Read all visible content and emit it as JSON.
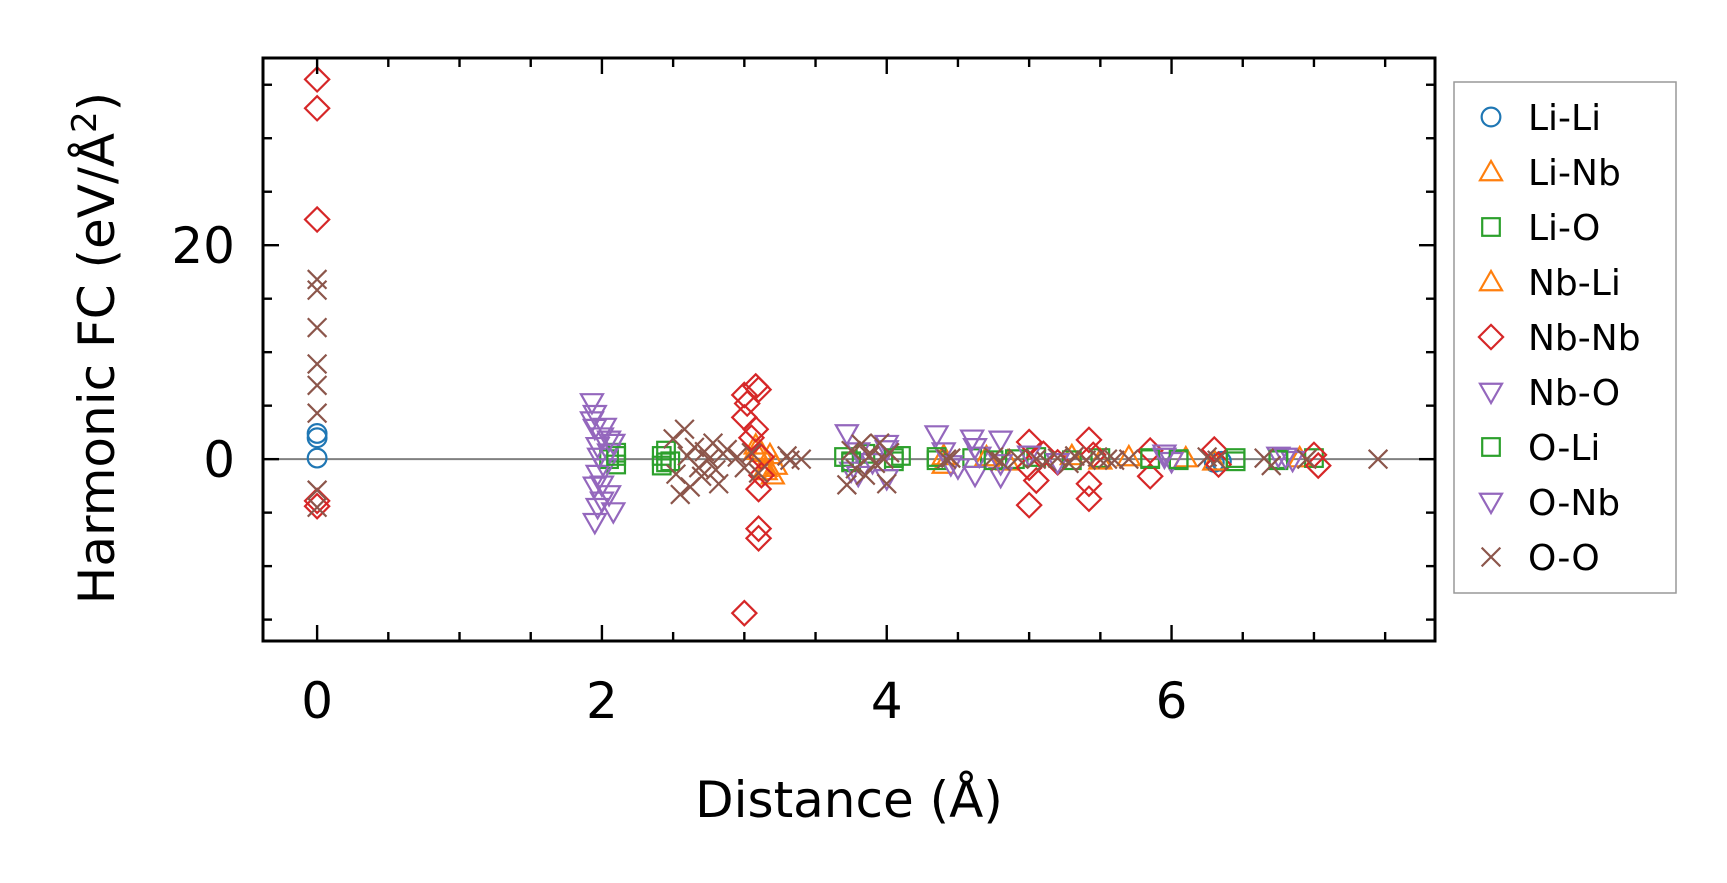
{
  "chart_data": {
    "type": "scatter",
    "title": "",
    "xlabel": "Distance (Å)",
    "ylabel_main": "Harmonic FC (eV/Å",
    "ylabel_sup": "2",
    "ylabel_close": ")",
    "xlim": [
      -0.38,
      7.85
    ],
    "ylim": [
      -17,
      37.5
    ],
    "xticks": [
      0,
      2,
      4,
      6
    ],
    "xtick_labels": [
      "0",
      "2",
      "4",
      "6"
    ],
    "yticks": [
      0,
      20
    ],
    "ytick_labels": [
      "0",
      "20"
    ],
    "grid": false,
    "zero_line": true,
    "legend_position": "outside-right",
    "series": [
      {
        "name": "Li-Li",
        "marker": "circle",
        "color": "#1f77b4",
        "points": [
          [
            0,
            2.4
          ],
          [
            0,
            2.0
          ],
          [
            0,
            0.1
          ],
          [
            6.3,
            -0.3
          ],
          [
            6.35,
            -0.2
          ]
        ]
      },
      {
        "name": "Li-Nb",
        "marker": "triangle-up",
        "color": "#ff7f0e",
        "points": [
          [
            3.08,
            1.3
          ],
          [
            3.15,
            -0.8
          ],
          [
            3.2,
            -1.5
          ],
          [
            3.12,
            0.6
          ],
          [
            4.4,
            -0.5
          ],
          [
            4.85,
            -0.2
          ],
          [
            5.3,
            0.3
          ],
          [
            5.7,
            0.2
          ],
          [
            6.3,
            -0.2
          ],
          [
            6.9,
            0.1
          ]
        ]
      },
      {
        "name": "Li-O",
        "marker": "square",
        "color": "#2ca02c",
        "points": [
          [
            2.05,
            0.0
          ],
          [
            2.1,
            -0.5
          ],
          [
            2.1,
            0.6
          ],
          [
            2.42,
            0.3
          ],
          [
            2.42,
            -0.6
          ],
          [
            2.45,
            0.8
          ],
          [
            2.48,
            -0.2
          ],
          [
            3.7,
            0.2
          ],
          [
            3.75,
            -0.3
          ],
          [
            3.85,
            0.5
          ],
          [
            4.05,
            -0.2
          ],
          [
            4.1,
            0.3
          ],
          [
            4.35,
            -0.1
          ],
          [
            4.6,
            0.1
          ],
          [
            4.9,
            0.0
          ],
          [
            5.05,
            0.2
          ],
          [
            5.3,
            -0.1
          ],
          [
            5.5,
            0.1
          ],
          [
            5.85,
            0.0
          ],
          [
            6.05,
            -0.1
          ],
          [
            6.45,
            -0.2
          ],
          [
            6.75,
            0.0
          ],
          [
            7.0,
            0.1
          ]
        ]
      },
      {
        "name": "Nb-Li",
        "marker": "triangle-up",
        "color": "#ff7f0e",
        "points": [
          [
            3.08,
            0.8
          ],
          [
            3.15,
            -1.1
          ],
          [
            3.18,
            0.4
          ],
          [
            3.22,
            -0.6
          ],
          [
            4.4,
            0.3
          ],
          [
            4.7,
            0.2
          ],
          [
            5.5,
            -0.1
          ],
          [
            6.1,
            0.1
          ]
        ]
      },
      {
        "name": "Nb-Nb",
        "marker": "diamond",
        "color": "#d62728",
        "points": [
          [
            0,
            35.5
          ],
          [
            0,
            32.8
          ],
          [
            0,
            22.4
          ],
          [
            0,
            -3.9
          ],
          [
            0,
            -4.4
          ],
          [
            3.0,
            6.0
          ],
          [
            3.0,
            3.9
          ],
          [
            3.0,
            -14.4
          ],
          [
            3.02,
            5.2
          ],
          [
            3.05,
            2.0
          ],
          [
            3.08,
            6.8
          ],
          [
            3.1,
            6.5
          ],
          [
            3.08,
            2.8
          ],
          [
            3.1,
            -2.8
          ],
          [
            3.1,
            -6.5
          ],
          [
            3.1,
            -7.4
          ],
          [
            3.12,
            -1.5
          ],
          [
            3.12,
            0.2
          ],
          [
            5.0,
            1.6
          ],
          [
            5.0,
            -0.8
          ],
          [
            5.0,
            -4.3
          ],
          [
            5.05,
            -2.0
          ],
          [
            5.1,
            0.5
          ],
          [
            5.2,
            -0.3
          ],
          [
            5.42,
            1.8
          ],
          [
            5.42,
            -3.7
          ],
          [
            5.42,
            -2.3
          ],
          [
            5.45,
            0.4
          ],
          [
            5.85,
            0.8
          ],
          [
            5.85,
            -1.6
          ],
          [
            6.3,
            0.9
          ],
          [
            6.33,
            -0.5
          ],
          [
            7.0,
            0.4
          ],
          [
            7.03,
            -0.6
          ]
        ]
      },
      {
        "name": "Nb-O",
        "marker": "triangle-down",
        "color": "#9467bd",
        "points": [
          [
            1.93,
            5.3
          ],
          [
            1.93,
            3.6
          ],
          [
            1.95,
            2.9
          ],
          [
            1.95,
            -2.5
          ],
          [
            1.95,
            -5.9
          ],
          [
            1.97,
            -1.4
          ],
          [
            1.97,
            1.2
          ],
          [
            1.98,
            0.2
          ],
          [
            2.0,
            2.1
          ],
          [
            2.0,
            -3.9
          ],
          [
            2.02,
            3.0
          ],
          [
            2.02,
            -0.8
          ],
          [
            2.05,
            -3.3
          ],
          [
            2.05,
            0.6
          ],
          [
            2.08,
            -4.9
          ],
          [
            2.08,
            1.5
          ],
          [
            3.72,
            2.4
          ],
          [
            3.75,
            -1.1
          ],
          [
            3.8,
            0.7
          ],
          [
            3.9,
            -0.3
          ],
          [
            4.0,
            1.4
          ],
          [
            4.0,
            -1.8
          ],
          [
            4.35,
            2.3
          ],
          [
            4.4,
            0.7
          ],
          [
            4.5,
            -0.8
          ],
          [
            4.6,
            1.9
          ],
          [
            4.62,
            -1.5
          ],
          [
            4.65,
            0.3
          ],
          [
            4.8,
            1.8
          ],
          [
            4.8,
            -1.6
          ],
          [
            5.0,
            0.4
          ],
          [
            5.2,
            -0.3
          ],
          [
            5.95,
            0.5
          ],
          [
            6.0,
            -0.2
          ],
          [
            6.75,
            0.3
          ],
          [
            6.85,
            -0.1
          ]
        ]
      },
      {
        "name": "O-Li",
        "marker": "square",
        "color": "#2ca02c",
        "points": [
          [
            2.1,
            0.3
          ],
          [
            2.45,
            -0.3
          ],
          [
            3.75,
            -0.2
          ],
          [
            4.05,
            0.1
          ],
          [
            4.35,
            0.2
          ],
          [
            4.75,
            -0.1
          ],
          [
            5.85,
            0.1
          ],
          [
            6.05,
            0.0
          ],
          [
            6.45,
            0.1
          ],
          [
            6.75,
            -0.1
          ]
        ]
      },
      {
        "name": "O-Nb",
        "marker": "triangle-down",
        "color": "#9467bd",
        "points": [
          [
            1.95,
            4.2
          ],
          [
            1.97,
            -4.5
          ],
          [
            2.0,
            -2.4
          ],
          [
            2.05,
            1.8
          ],
          [
            3.8,
            -1.5
          ],
          [
            4.0,
            0.9
          ],
          [
            4.45,
            -0.5
          ],
          [
            4.62,
            1.1
          ],
          [
            4.8,
            -0.4
          ],
          [
            5.95,
            0.2
          ],
          [
            6.8,
            0.2
          ]
        ]
      },
      {
        "name": "O-O",
        "marker": "x",
        "color": "#8c564b",
        "points": [
          [
            0,
            16.8
          ],
          [
            0,
            15.8
          ],
          [
            0,
            12.3
          ],
          [
            0,
            8.9
          ],
          [
            0,
            6.9
          ],
          [
            0,
            4.3
          ],
          [
            0,
            -2.9
          ],
          [
            0,
            -4.5
          ],
          [
            2.5,
            1.9
          ],
          [
            2.52,
            -1.4
          ],
          [
            2.55,
            -3.3
          ],
          [
            2.58,
            2.8
          ],
          [
            2.6,
            0.3
          ],
          [
            2.62,
            -2.6
          ],
          [
            2.65,
            1.1
          ],
          [
            2.68,
            -0.8
          ],
          [
            2.7,
            -1.6
          ],
          [
            2.72,
            0.7
          ],
          [
            2.75,
            0.0
          ],
          [
            2.78,
            1.5
          ],
          [
            2.8,
            -1.0
          ],
          [
            2.82,
            -2.3
          ],
          [
            2.85,
            0.5
          ],
          [
            2.88,
            0.9
          ],
          [
            2.95,
            0.2
          ],
          [
            3.0,
            -0.8
          ],
          [
            3.05,
            0.6
          ],
          [
            3.1,
            -1.3
          ],
          [
            3.3,
            0.3
          ],
          [
            3.32,
            -0.1
          ],
          [
            3.4,
            0.0
          ],
          [
            3.72,
            -2.4
          ],
          [
            3.75,
            0.8
          ],
          [
            3.78,
            -0.9
          ],
          [
            3.82,
            1.4
          ],
          [
            3.85,
            -1.5
          ],
          [
            3.88,
            0.3
          ],
          [
            3.92,
            -0.4
          ],
          [
            3.95,
            1.5
          ],
          [
            3.98,
            0.0
          ],
          [
            4.0,
            -2.3
          ],
          [
            4.02,
            0.6
          ],
          [
            4.42,
            0.0
          ],
          [
            4.45,
            0.1
          ],
          [
            4.75,
            0.2
          ],
          [
            4.8,
            -0.2
          ],
          [
            4.92,
            0.1
          ],
          [
            5.05,
            0.0
          ],
          [
            5.12,
            -0.2
          ],
          [
            5.2,
            0.1
          ],
          [
            5.28,
            -0.4
          ],
          [
            5.32,
            0.3
          ],
          [
            5.4,
            -0.1
          ],
          [
            5.48,
            0.2
          ],
          [
            5.55,
            0.0
          ],
          [
            5.6,
            -0.1
          ],
          [
            5.7,
            0.0
          ],
          [
            6.25,
            0.2
          ],
          [
            6.32,
            -0.1
          ],
          [
            6.65,
            0.1
          ],
          [
            6.7,
            -0.6
          ],
          [
            6.95,
            0.0
          ],
          [
            7.45,
            0.0
          ]
        ]
      }
    ]
  }
}
